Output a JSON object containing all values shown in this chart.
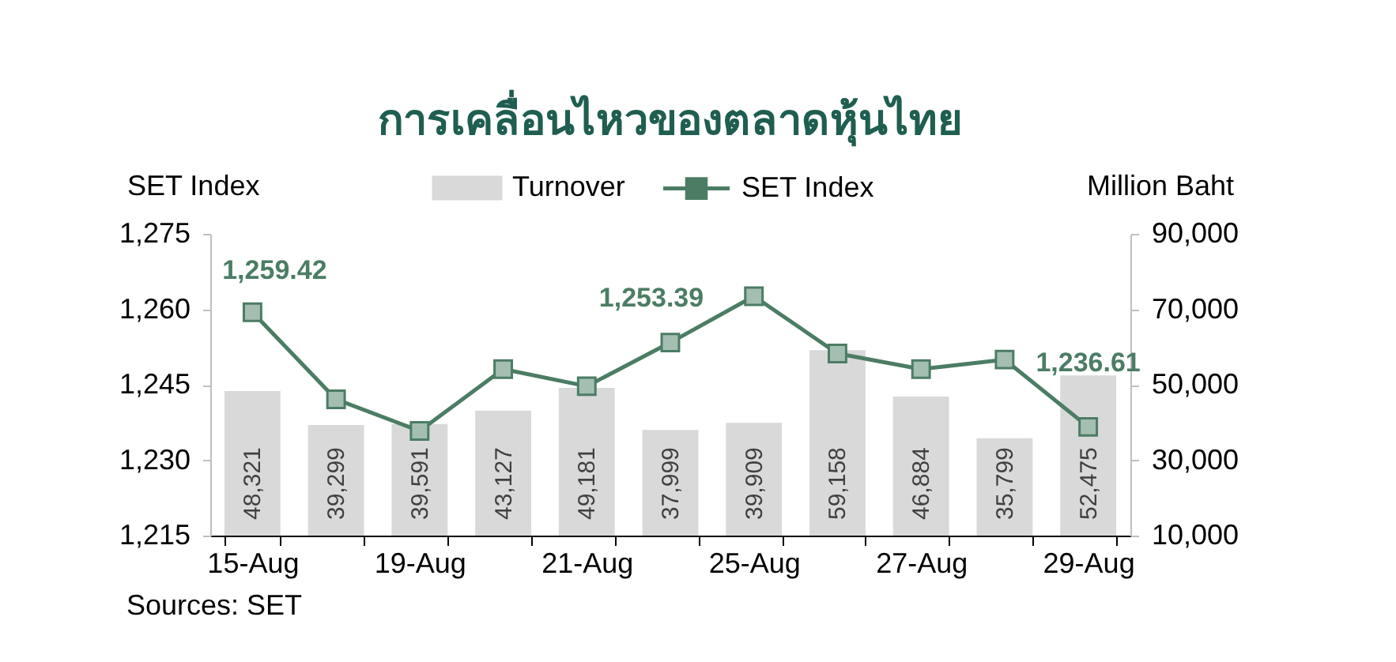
{
  "chart_data": {
    "type": "bar",
    "title": "การเคลื่อนไหวของตลาดหุ้นไทย",
    "ylabel": "SET Index",
    "y2label": "Million Baht",
    "categories": [
      "15-Aug",
      null,
      "19-Aug",
      null,
      "21-Aug",
      null,
      "25-Aug",
      null,
      "27-Aug",
      null,
      "29-Aug"
    ],
    "series": [
      {
        "name": "Turnover",
        "axis": "y2",
        "color": "#d9d9d9",
        "values": [
          48321,
          39299,
          39591,
          43127,
          49181,
          37999,
          39909,
          59158,
          46884,
          35799,
          52475
        ],
        "value_labels": [
          "48,321",
          "39,299",
          "39,591",
          "43,127",
          "49,181",
          "37,999",
          "39,909",
          "59,158",
          "46,884",
          "35,799",
          "52,475"
        ]
      },
      {
        "name": "SET Index",
        "type": "line",
        "color": "#4b7d64",
        "values": [
          1259.42,
          1242.1,
          1235.8,
          1248.1,
          1244.7,
          1253.39,
          1262.6,
          1251.2,
          1248.1,
          1250,
          1236.61
        ],
        "value_labels": [
          "1,259.42",
          null,
          null,
          null,
          null,
          "1,253.39",
          null,
          null,
          null,
          null,
          "1,236.61"
        ]
      }
    ],
    "ylim": [
      1215,
      1275
    ],
    "yticks": [
      {
        "value": 1215,
        "label": "1,215"
      },
      {
        "value": 1230,
        "label": "1,230"
      },
      {
        "value": 1245,
        "label": "1,245"
      },
      {
        "value": 1260,
        "label": "1,260"
      },
      {
        "value": 1275,
        "label": "1,275"
      }
    ],
    "y2lim": [
      10000,
      90000
    ],
    "y2ticks": [
      {
        "value": 10000,
        "label": "10,000"
      },
      {
        "value": 30000,
        "label": "30,000"
      },
      {
        "value": 50000,
        "label": "50,000"
      },
      {
        "value": 70000,
        "label": "70,000"
      },
      {
        "value": 90000,
        "label": "90,000"
      }
    ],
    "legend": "top",
    "marker": "square",
    "line_style": "solid",
    "annotations": [
      "Sources: SET"
    ]
  }
}
